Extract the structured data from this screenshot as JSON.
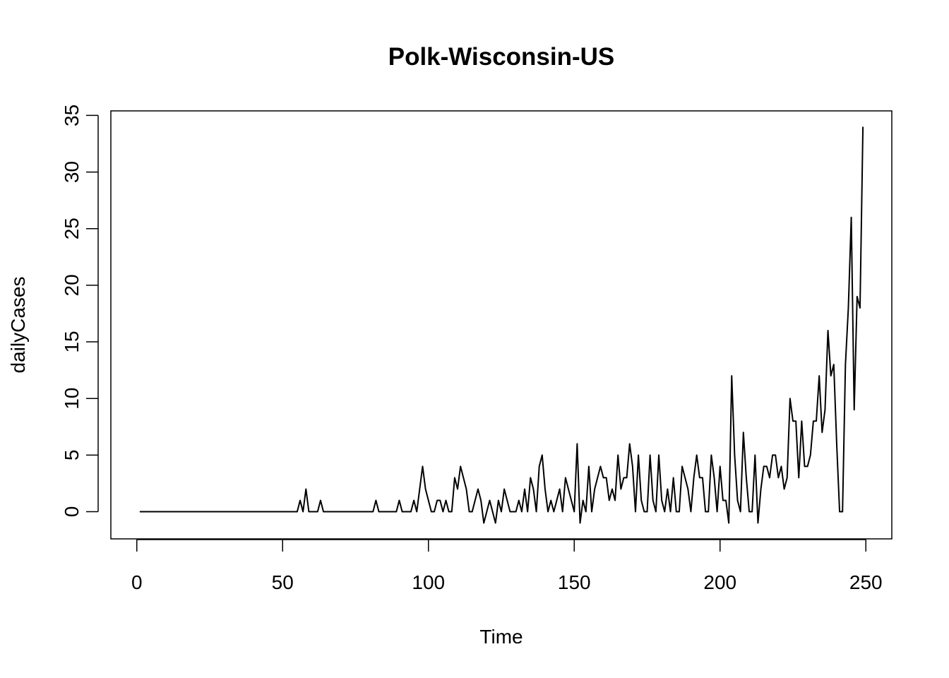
{
  "chart_data": {
    "type": "line",
    "title": "Polk-Wisconsin-US",
    "xlabel": "Time",
    "ylabel": "dailyCases",
    "xlim": [
      -8.9,
      258.9
    ],
    "ylim": [
      -2.4,
      35.4
    ],
    "xticks": [
      0,
      50,
      100,
      150,
      200,
      250
    ],
    "yticks": [
      0,
      5,
      10,
      15,
      20,
      25,
      30,
      35
    ],
    "grid": false,
    "legend": "none",
    "line_color": "#000000",
    "series": [
      {
        "x_start": 1,
        "values": [
          0,
          0,
          0,
          0,
          0,
          0,
          0,
          0,
          0,
          0,
          0,
          0,
          0,
          0,
          0,
          0,
          0,
          0,
          0,
          0,
          0,
          0,
          0,
          0,
          0,
          0,
          0,
          0,
          0,
          0,
          0,
          0,
          0,
          0,
          0,
          0,
          0,
          0,
          0,
          0,
          0,
          0,
          0,
          0,
          0,
          0,
          0,
          0,
          0,
          0,
          0,
          0,
          0,
          0,
          0,
          1,
          0,
          2,
          0,
          0,
          0,
          0,
          1,
          0,
          0,
          0,
          0,
          0,
          0,
          0,
          0,
          0,
          0,
          0,
          0,
          0,
          0,
          0,
          0,
          0,
          0,
          1,
          0,
          0,
          0,
          0,
          0,
          0,
          0,
          1,
          0,
          0,
          0,
          0,
          1,
          0,
          2,
          4,
          2,
          1,
          0,
          0,
          1,
          1,
          0,
          1,
          0,
          0,
          3,
          2,
          4,
          3,
          2,
          0,
          0,
          1,
          2,
          1,
          -1,
          0,
          1,
          0,
          -1,
          1,
          0,
          2,
          1,
          0,
          0,
          0,
          1,
          0,
          2,
          0,
          3,
          2,
          0,
          4,
          5,
          2,
          0,
          1,
          0,
          1,
          2,
          0,
          3,
          2,
          1,
          0,
          6,
          -1,
          1,
          0,
          4,
          0,
          2,
          3,
          4,
          3,
          3,
          1,
          2,
          1,
          5,
          2,
          3,
          3,
          6,
          4,
          0,
          5,
          1,
          0,
          0,
          5,
          1,
          0,
          5,
          1,
          0,
          2,
          0,
          3,
          0,
          0,
          4,
          3,
          2,
          0,
          3,
          5,
          3,
          3,
          0,
          0,
          5,
          3,
          0,
          4,
          1,
          1,
          -1,
          12,
          5,
          1,
          0,
          7,
          3,
          0,
          0,
          5,
          -1,
          2,
          4,
          4,
          3,
          5,
          5,
          3,
          4,
          2,
          3,
          10,
          8,
          8,
          3,
          8,
          4,
          4,
          5,
          8,
          8,
          12,
          7,
          9,
          16,
          12,
          13,
          6,
          0,
          0,
          13,
          18,
          26,
          9,
          19,
          18,
          34
        ]
      }
    ]
  }
}
